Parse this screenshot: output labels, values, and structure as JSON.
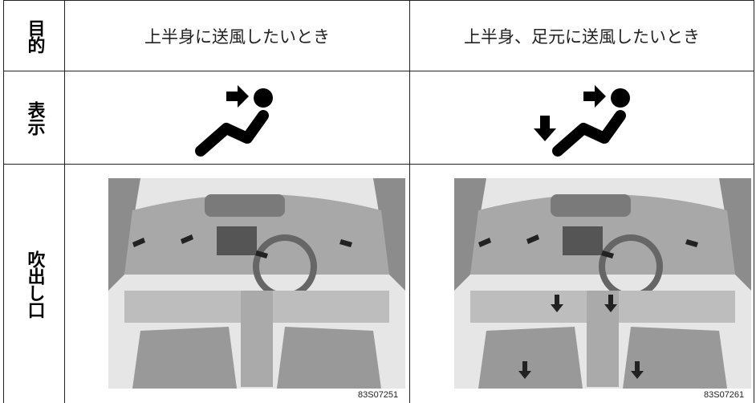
{
  "table": {
    "row_headers": [
      "目的",
      "表示",
      "吹出し口"
    ],
    "columns": [
      "上半身に送風したいとき",
      "上半身、足元に送風したいとき"
    ],
    "image_codes": [
      "83S07251",
      "83S07261"
    ]
  }
}
